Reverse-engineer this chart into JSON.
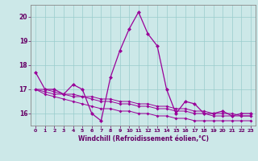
{
  "xlabel": "Windchill (Refroidissement éolien,°C)",
  "hours": [
    0,
    1,
    2,
    3,
    4,
    5,
    6,
    7,
    8,
    9,
    10,
    11,
    12,
    13,
    14,
    15,
    16,
    17,
    18,
    19,
    20,
    21,
    22,
    23
  ],
  "line1": [
    17.7,
    17.0,
    17.0,
    16.8,
    17.2,
    17.0,
    16.0,
    15.7,
    17.5,
    18.6,
    19.5,
    20.2,
    19.3,
    18.8,
    17.0,
    16.0,
    16.5,
    16.4,
    16.0,
    16.0,
    16.1,
    15.9,
    16.0,
    16.0
  ],
  "line2": [
    17.0,
    17.0,
    16.9,
    16.8,
    16.8,
    16.7,
    16.7,
    16.6,
    16.6,
    16.5,
    16.5,
    16.4,
    16.4,
    16.3,
    16.3,
    16.2,
    16.2,
    16.1,
    16.1,
    16.0,
    16.0,
    16.0,
    15.9,
    15.9
  ],
  "line3": [
    17.0,
    16.9,
    16.8,
    16.8,
    16.7,
    16.7,
    16.6,
    16.5,
    16.5,
    16.4,
    16.4,
    16.3,
    16.3,
    16.2,
    16.2,
    16.1,
    16.1,
    16.0,
    16.0,
    15.9,
    15.9,
    15.9,
    15.9,
    15.9
  ],
  "line4": [
    17.0,
    16.8,
    16.7,
    16.6,
    16.5,
    16.4,
    16.3,
    16.2,
    16.2,
    16.1,
    16.1,
    16.0,
    16.0,
    15.9,
    15.9,
    15.8,
    15.8,
    15.7,
    15.7,
    15.7,
    15.7,
    15.7,
    15.7,
    15.7
  ],
  "line_color": "#990099",
  "bg_color": "#cce8e8",
  "grid_color": "#99cccc",
  "ylim": [
    15.5,
    20.5
  ],
  "yticks": [
    16,
    17,
    18,
    19,
    20
  ],
  "label_color": "#660066"
}
